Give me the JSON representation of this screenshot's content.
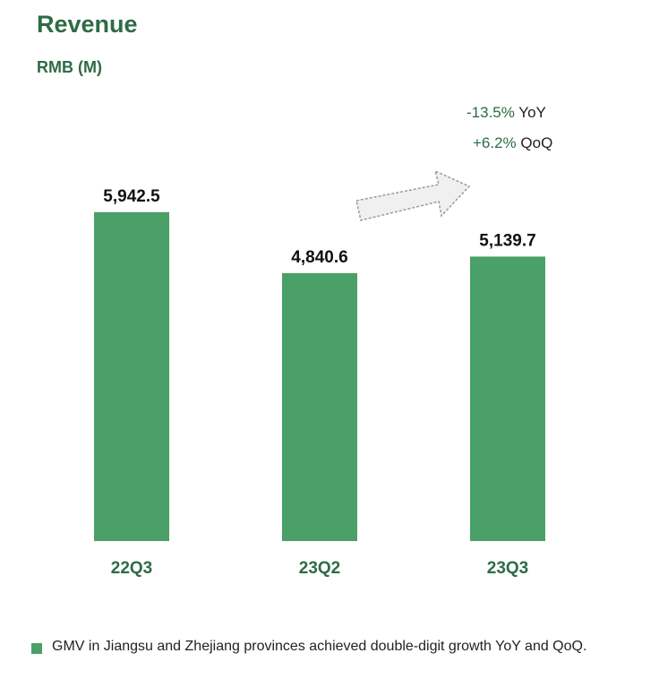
{
  "header": {
    "title": "Revenue",
    "unit": "RMB (M)"
  },
  "growth": {
    "yoy_value": "-13.5%",
    "yoy_label": "YoY",
    "qoq_value": "+6.2%",
    "qoq_label": "QoQ"
  },
  "chart_data": {
    "type": "bar",
    "title": "Revenue",
    "ylabel": "RMB (M)",
    "xlabel": "",
    "categories": [
      "22Q3",
      "23Q2",
      "23Q3"
    ],
    "values": [
      5942.5,
      4840.6,
      5139.7
    ],
    "data_labels": [
      "5,942.5",
      "4,840.6",
      "5,139.7"
    ],
    "ylim": [
      0,
      6700
    ],
    "grid": false,
    "bar_color": "#4aa068",
    "label_color": "#2e6b45"
  },
  "footnote": {
    "text": "GMV in Jiangsu and Zhejiang provinces achieved double-digit growth YoY and QoQ."
  }
}
